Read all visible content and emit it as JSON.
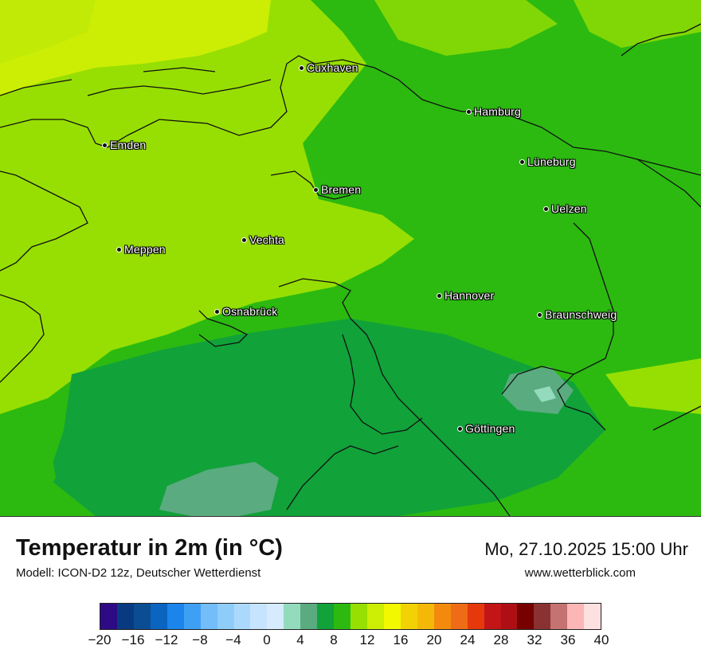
{
  "map": {
    "cities": [
      {
        "name": "Cuxhaven"
      },
      {
        "name": "Hamburg"
      },
      {
        "name": "Emden"
      },
      {
        "name": "Lüneburg"
      },
      {
        "name": "Bremen"
      },
      {
        "name": "Uelzen"
      },
      {
        "name": "Vechta"
      },
      {
        "name": "Meppen"
      },
      {
        "name": "Hannover"
      },
      {
        "name": "Osnabrück"
      },
      {
        "name": "Braunschweig"
      },
      {
        "name": "Göttingen"
      }
    ]
  },
  "header": {
    "title": "Temperatur in 2m (in °C)",
    "subtitle": "Modell: ICON-D2 12z, Deutscher Wetterdienst",
    "datetime": "Mo, 27.10.2025 15:00 Uhr",
    "website": "www.wetterblick.com"
  },
  "legend": {
    "colors": [
      "#2e0a84",
      "#083a82",
      "#0b4d92",
      "#0a64c0",
      "#1b85ec",
      "#3ea0f5",
      "#72bdfa",
      "#8ecdfa",
      "#abd9fc",
      "#c6e4fd",
      "#d6ebfd",
      "#94dbbe",
      "#5aab80",
      "#11a23a",
      "#2cba10",
      "#97df02",
      "#ccee04",
      "#f2f800",
      "#f2d204",
      "#f4b908",
      "#f38a0e",
      "#ef6c16",
      "#e5390c",
      "#c31417",
      "#ae0f14",
      "#770000",
      "#8a3232",
      "#c57272",
      "#fcb6b6",
      "#fde0e0"
    ],
    "ticks": [
      "−20",
      "−16",
      "−12",
      "−8",
      "−4",
      "0",
      "4",
      "8",
      "12",
      "16",
      "20",
      "24",
      "28",
      "32",
      "36",
      "40"
    ]
  }
}
